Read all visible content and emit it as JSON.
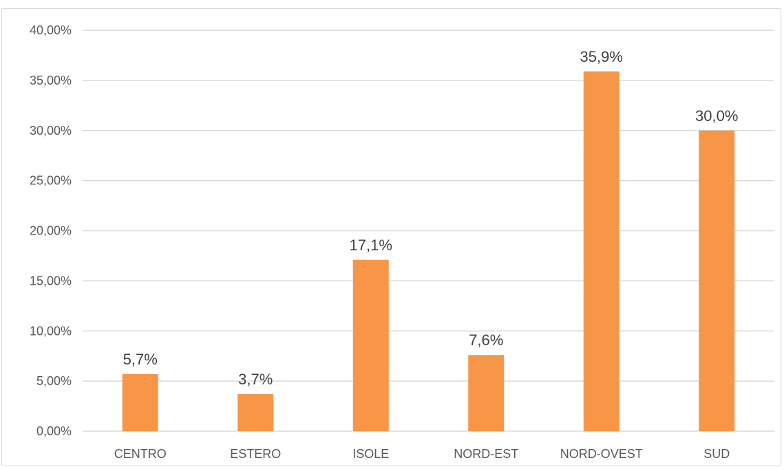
{
  "chart_data": {
    "type": "bar",
    "categories": [
      "CENTRO",
      "ESTERO",
      "ISOLE",
      "NORD-EST",
      "NORD-OVEST",
      "SUD"
    ],
    "values": [
      5.7,
      3.7,
      17.1,
      7.6,
      35.9,
      30.0
    ],
    "data_labels": [
      "5,7%",
      "3,7%",
      "17,1%",
      "7,6%",
      "35,9%",
      "30,0%"
    ],
    "y_tick_labels": [
      "0,00%",
      "5,00%",
      "10,00%",
      "15,00%",
      "20,00%",
      "25,00%",
      "30,00%",
      "35,00%",
      "40,00%"
    ],
    "ylim": [
      0,
      40
    ],
    "y_tick_step": 5,
    "grid": true,
    "title": "",
    "xlabel": "",
    "ylabel": "",
    "colors": {
      "bar": "#F79646",
      "grid": "#d9d9d9",
      "axis": "#d9d9d9"
    }
  }
}
